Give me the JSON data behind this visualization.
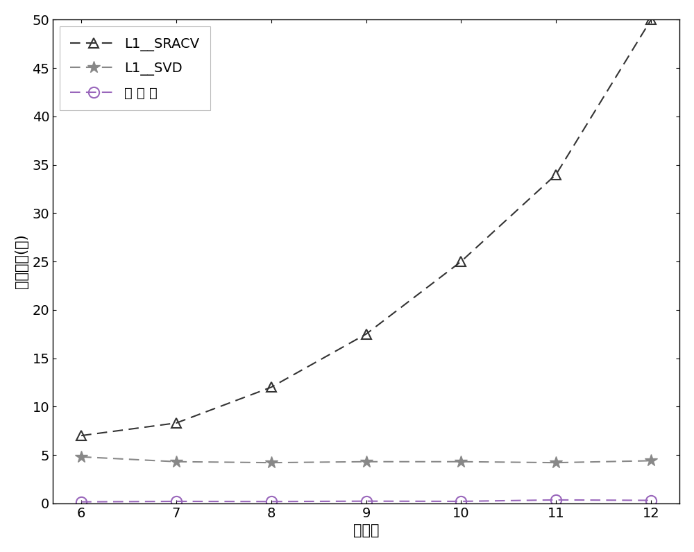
{
  "x": [
    6,
    7,
    8,
    9,
    10,
    11,
    12
  ],
  "L1_SRACV": [
    7.0,
    8.3,
    12.0,
    17.5,
    25.0,
    34.0,
    50.0
  ],
  "L1_SVD": [
    4.8,
    4.3,
    4.2,
    4.3,
    4.3,
    4.2,
    4.4
  ],
  "proposed": [
    0.15,
    0.2,
    0.18,
    0.22,
    0.2,
    0.35,
    0.3
  ],
  "xlabel": "阵元数",
  "ylabel": "运算时间(秒)",
  "xlim": [
    5.7,
    12.3
  ],
  "ylim": [
    0,
    50
  ],
  "yticks": [
    0,
    5,
    10,
    15,
    20,
    25,
    30,
    35,
    40,
    45,
    50
  ],
  "xticks": [
    6,
    7,
    8,
    9,
    10,
    11,
    12
  ],
  "legend_labels": [
    "L1__SRACV",
    "L1__SVD",
    "本 发 明"
  ],
  "line_color_sracv": "#333333",
  "line_color_svd": "#888888",
  "line_color_proposed": "#9966bb",
  "bg_color": "#ffffff",
  "label_fontsize": 15,
  "legend_fontsize": 14,
  "tick_fontsize": 14
}
